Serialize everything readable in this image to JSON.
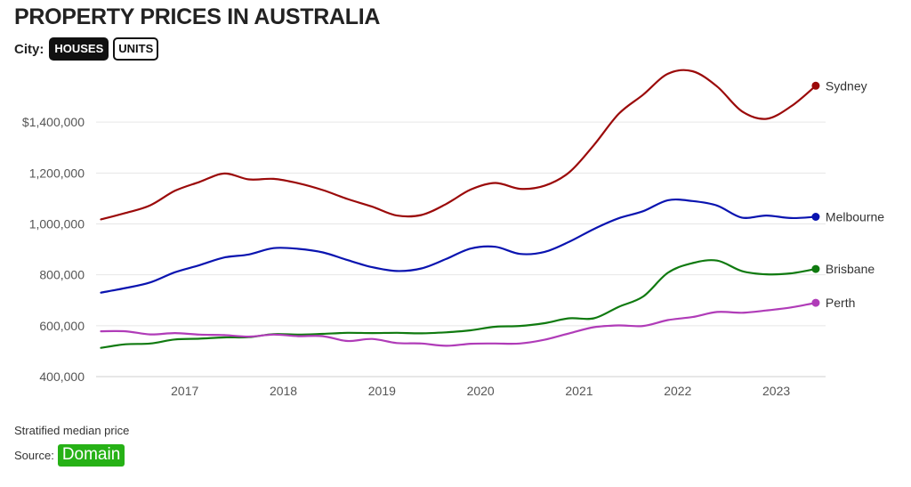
{
  "title": "PROPERTY PRICES IN AUSTRALIA",
  "controls": {
    "label": "City:",
    "toggles": [
      {
        "label": "HOUSES",
        "active": true
      },
      {
        "label": "UNITS",
        "active": false
      }
    ]
  },
  "footnote": "Stratified median price",
  "source": {
    "label": "Source:",
    "logo_text": "Domain",
    "logo_color": "#26b116"
  },
  "chart_data": {
    "type": "line",
    "title": "PROPERTY PRICES IN AUSTRALIA",
    "xlabel": "",
    "ylabel": "",
    "xlim": [
      2016.1,
      2023.5
    ],
    "ylim": [
      400000,
      1600000
    ],
    "yticks": [
      {
        "value": 400000,
        "label": "400,000"
      },
      {
        "value": 600000,
        "label": "600,000"
      },
      {
        "value": 800000,
        "label": "800,000"
      },
      {
        "value": 1000000,
        "label": "1,000,000"
      },
      {
        "value": 1200000,
        "label": "1,200,000"
      },
      {
        "value": 1400000,
        "label": "$1,400,000"
      }
    ],
    "xticks": [
      {
        "value": 2017,
        "label": "2017"
      },
      {
        "value": 2018,
        "label": "2018"
      },
      {
        "value": 2019,
        "label": "2019"
      },
      {
        "value": 2020,
        "label": "2020"
      },
      {
        "value": 2021,
        "label": "2021"
      },
      {
        "value": 2022,
        "label": "2022"
      },
      {
        "value": 2023,
        "label": "2023"
      }
    ],
    "grid": "horizontal",
    "legend": "end-of-line labels",
    "x": [
      2016.15,
      2016.4,
      2016.65,
      2016.9,
      2017.15,
      2017.4,
      2017.65,
      2017.9,
      2018.15,
      2018.4,
      2018.65,
      2018.9,
      2019.15,
      2019.4,
      2019.65,
      2019.9,
      2020.15,
      2020.4,
      2020.65,
      2020.9,
      2021.15,
      2021.4,
      2021.65,
      2021.9,
      2022.15,
      2022.4,
      2022.65,
      2022.9,
      2023.15,
      2023.4
    ],
    "series": [
      {
        "name": "Sydney",
        "color": "#9b0a0a",
        "values": [
          1018000,
          1043000,
          1073000,
          1130000,
          1165000,
          1198000,
          1175000,
          1177000,
          1160000,
          1133000,
          1098000,
          1068000,
          1033000,
          1035000,
          1078000,
          1135000,
          1161000,
          1138000,
          1150000,
          1203000,
          1310000,
          1432000,
          1508000,
          1590000,
          1600000,
          1540000,
          1443000,
          1413000,
          1462000,
          1543000
        ]
      },
      {
        "name": "Melbourne",
        "color": "#0a14b0",
        "values": [
          730000,
          748000,
          770000,
          810000,
          838000,
          868000,
          880000,
          905000,
          902000,
          888000,
          858000,
          830000,
          815000,
          825000,
          862000,
          903000,
          910000,
          882000,
          890000,
          930000,
          980000,
          1022000,
          1050000,
          1093000,
          1090000,
          1072000,
          1025000,
          1033000,
          1023000,
          1028000
        ]
      },
      {
        "name": "Brisbane",
        "color": "#107a10",
        "values": [
          513000,
          527000,
          530000,
          546000,
          549000,
          554000,
          555000,
          567000,
          565000,
          568000,
          572000,
          571000,
          572000,
          570000,
          574000,
          582000,
          596000,
          599000,
          610000,
          629000,
          629000,
          674000,
          715000,
          808000,
          846000,
          856000,
          815000,
          802000,
          806000,
          823000
        ]
      },
      {
        "name": "Perth",
        "color": "#b03cb8",
        "values": [
          578000,
          578000,
          566000,
          571000,
          565000,
          563000,
          557000,
          565000,
          559000,
          559000,
          540000,
          548000,
          532000,
          530000,
          521000,
          529000,
          530000,
          530000,
          545000,
          570000,
          594000,
          601000,
          599000,
          622000,
          634000,
          654000,
          651000,
          660000,
          672000,
          690000
        ]
      }
    ]
  }
}
